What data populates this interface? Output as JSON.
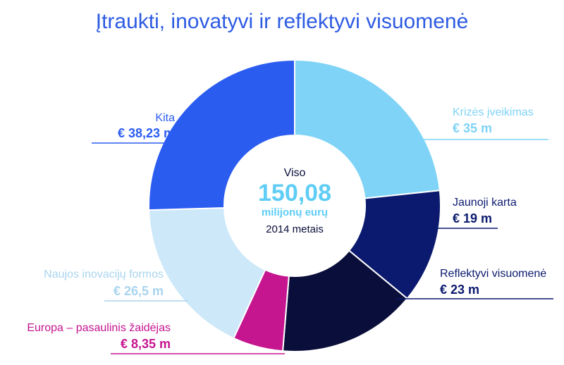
{
  "chart_data": {
    "type": "pie",
    "title": "Įtraukti, inovatyvi ir reflektyvi visuomenė",
    "donut": true,
    "center": {
      "line1": "Viso",
      "total": "150,08",
      "unit": "milijonų eurų",
      "year": "2014 metais"
    },
    "slices": [
      {
        "name": "Krizės įveikimas",
        "value": 35,
        "value_label": "€ 35 m",
        "color": "#7fd3f7"
      },
      {
        "name": "Jaunoji karta",
        "value": 19,
        "value_label": "€ 19 m",
        "color": "#0b1a6e"
      },
      {
        "name": "Reflektyvi visuomenė",
        "value": 23,
        "value_label": "€ 23 m",
        "color": "#0a0e3a"
      },
      {
        "name": "Europa – pasaulinis žaidėjas",
        "value": 8.35,
        "value_label": "€ 8,35 m",
        "color": "#c5158f"
      },
      {
        "name": "Naujos inovacijų formos",
        "value": 26.5,
        "value_label": "€ 26,5 m",
        "color": "#cde8f8"
      },
      {
        "name": "Kita",
        "value": 38.23,
        "value_label": "€ 38,23 m",
        "color": "#2b5cf0"
      }
    ],
    "label_colors": {
      "Krizės įveikimas": "#7fd3f7",
      "Jaunoji karta": "#0b1a6e",
      "Reflektyvi visuomenė": "#0b1a6e",
      "Europa – pasaulinis žaidėjas": "#c5158f",
      "Naujos inovacijų formos": "#a9d4ee",
      "Kita": "#2b5cf0"
    },
    "center_colors": {
      "text": "#0a0e3a",
      "total": "#5fcdf5"
    }
  }
}
